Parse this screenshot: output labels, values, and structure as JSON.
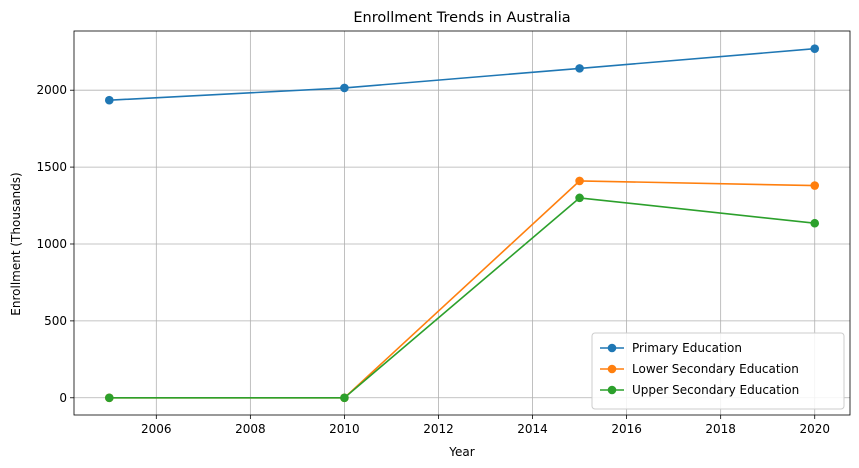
{
  "chart_data": {
    "type": "line",
    "title": "Enrollment Trends in Australia",
    "xlabel": "Year",
    "ylabel": "Enrollment (Thousands)",
    "x": [
      2005,
      2010,
      2015,
      2020
    ],
    "xlim": [
      2004.25,
      2020.75
    ],
    "ylim": [
      -112,
      2385
    ],
    "xticks": [
      2006,
      2008,
      2010,
      2012,
      2014,
      2016,
      2018,
      2020
    ],
    "yticks": [
      0,
      500,
      1000,
      1500,
      2000
    ],
    "grid": true,
    "legend_position": "lower-right",
    "series": [
      {
        "name": "Primary Education",
        "color": "#1f77b4",
        "marker": "circle",
        "values": [
          1935,
          2015,
          2142,
          2270
        ]
      },
      {
        "name": "Lower Secondary Education",
        "color": "#ff7f0e",
        "marker": "circle",
        "values": [
          0,
          0,
          1410,
          1380
        ]
      },
      {
        "name": "Upper Secondary Education",
        "color": "#2ca02c",
        "marker": "circle",
        "values": [
          0,
          0,
          1300,
          1135
        ]
      }
    ]
  }
}
